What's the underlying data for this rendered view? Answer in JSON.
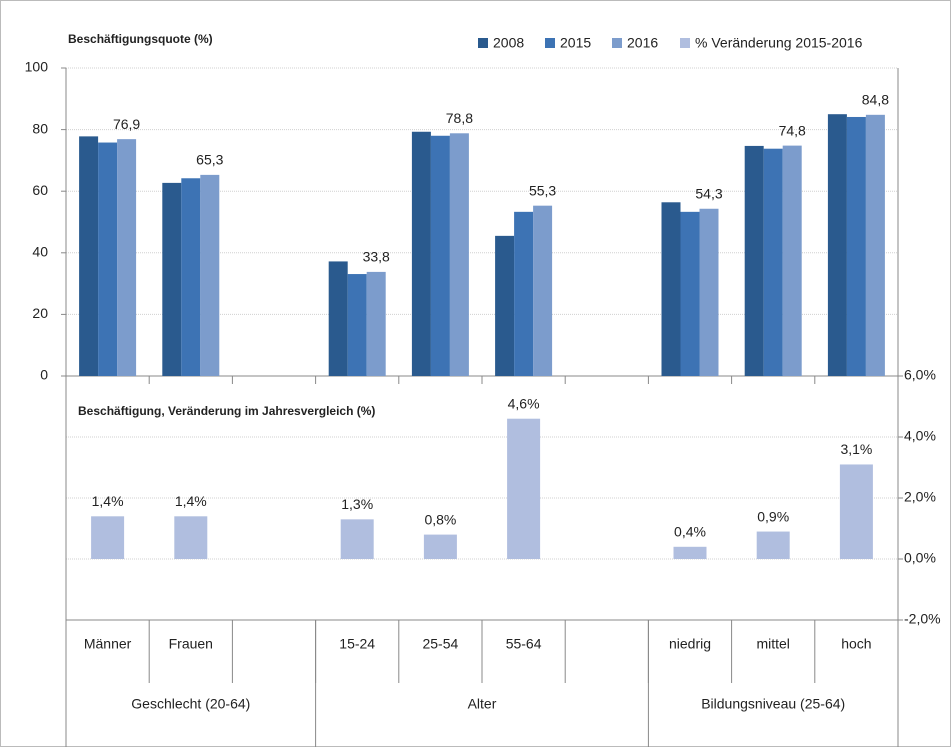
{
  "chart_data": {
    "type": "bar",
    "title": "Beschäftigungsquote (%)",
    "subtitle": "Beschäftigung, Veränderung im Jahresvergleich (%)",
    "categories": [
      "Männer",
      "Frauen",
      null,
      "15-24",
      "25-54",
      "55-64",
      null,
      "niedrig",
      "mittel",
      "hoch"
    ],
    "groups": [
      "Geschlecht (20-64)",
      "Alter",
      "Bildungsniveau (25-64)"
    ],
    "series": [
      {
        "name": "2008",
        "color": "#2a5a8e",
        "values": [
          77.8,
          62.7,
          null,
          37.2,
          79.3,
          45.5,
          null,
          56.4,
          74.7,
          85.0
        ]
      },
      {
        "name": "2015",
        "color": "#3d73b4",
        "values": [
          75.8,
          64.2,
          null,
          33.1,
          78.0,
          53.3,
          null,
          53.3,
          73.8,
          84.1
        ]
      },
      {
        "name": "2016",
        "color": "#7c9ccc",
        "values": [
          76.9,
          65.3,
          null,
          33.8,
          78.8,
          55.3,
          null,
          54.3,
          74.8,
          84.8
        ],
        "value_labels": [
          "76,9",
          "65,3",
          null,
          "33,8",
          "78,8",
          "55,3",
          null,
          "54,3",
          "74,8",
          "84,8"
        ]
      },
      {
        "name": "% Veränderung 2015-2016",
        "color": "#b0bedf",
        "axis": "y2",
        "values": [
          1.4,
          1.4,
          null,
          1.3,
          0.8,
          4.6,
          null,
          0.4,
          0.9,
          3.1
        ],
        "value_labels": [
          "1,4%",
          "1,4%",
          null,
          "1,3%",
          "0,8%",
          "4,6%",
          null,
          "0,4%",
          "0,9%",
          "3,1%"
        ]
      }
    ],
    "ylim": [
      0,
      100
    ],
    "yticks": [
      0,
      20,
      40,
      60,
      80,
      100
    ],
    "y2lim": [
      -2,
      6
    ],
    "y2ticks": [
      {
        "value": -2,
        "label": "-2,0%"
      },
      {
        "value": 0,
        "label": "0,0%"
      },
      {
        "value": 2,
        "label": "2,0%"
      },
      {
        "value": 4,
        "label": "4,0%"
      },
      {
        "value": 6,
        "label": "6,0%"
      }
    ],
    "grid": true,
    "legend": "top-right"
  }
}
